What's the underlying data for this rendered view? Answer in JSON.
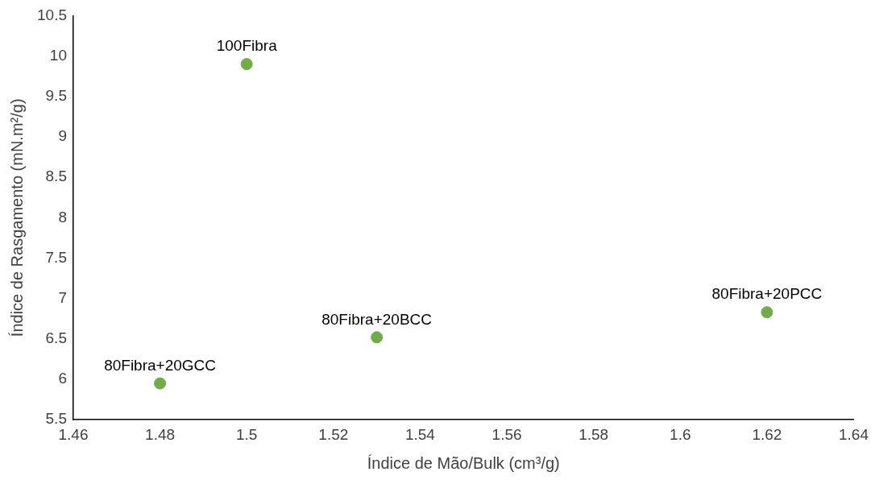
{
  "chart_data": {
    "type": "scatter",
    "xlabel": "Índice de Mão/Bulk (cm³/g)",
    "ylabel": "Índice de Rasgamento (mN.m²/g)",
    "x": [
      1.48,
      1.5,
      1.53,
      1.62
    ],
    "series": [
      {
        "color": "#70ad47",
        "values": [
          5.95,
          9.9,
          6.52,
          6.83
        ]
      }
    ],
    "xlim": [
      1.46,
      1.64
    ],
    "xticks": [
      1.46,
      1.48,
      1.5,
      1.52,
      1.54,
      1.56,
      1.58,
      1.6,
      1.62,
      1.64
    ],
    "ylim": [
      5.5,
      10.5
    ],
    "yticks": [
      5.5,
      6,
      6.5,
      7,
      7.5,
      8,
      8.5,
      9,
      9.5,
      10,
      10.5
    ],
    "grid": false,
    "legend": false,
    "marker": "circle",
    "annotations": [
      {
        "text": "80Fibra+20GCC",
        "x": 1.48,
        "y": 5.95
      },
      {
        "text": "100Fibra",
        "x": 1.5,
        "y": 9.9
      },
      {
        "text": "80Fibra+20BCC",
        "x": 1.53,
        "y": 6.52
      },
      {
        "text": "80Fibra+20PCC",
        "x": 1.62,
        "y": 6.83
      }
    ]
  }
}
